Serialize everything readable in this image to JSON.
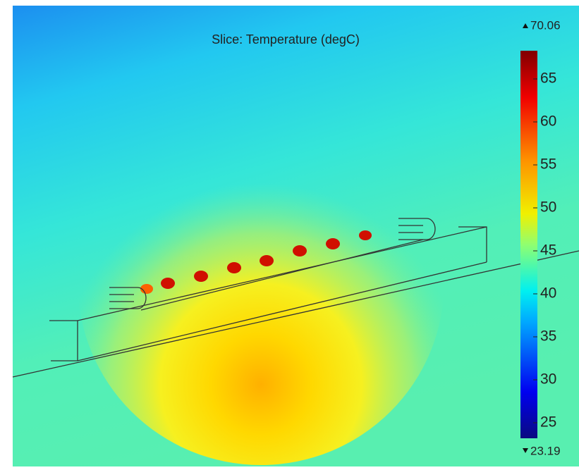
{
  "title": "Slice: Temperature (degC)",
  "colorbar": {
    "max": 70.06,
    "min": 23.19,
    "ticks": [
      25,
      30,
      35,
      40,
      45,
      50,
      55,
      60,
      65
    ]
  }
}
